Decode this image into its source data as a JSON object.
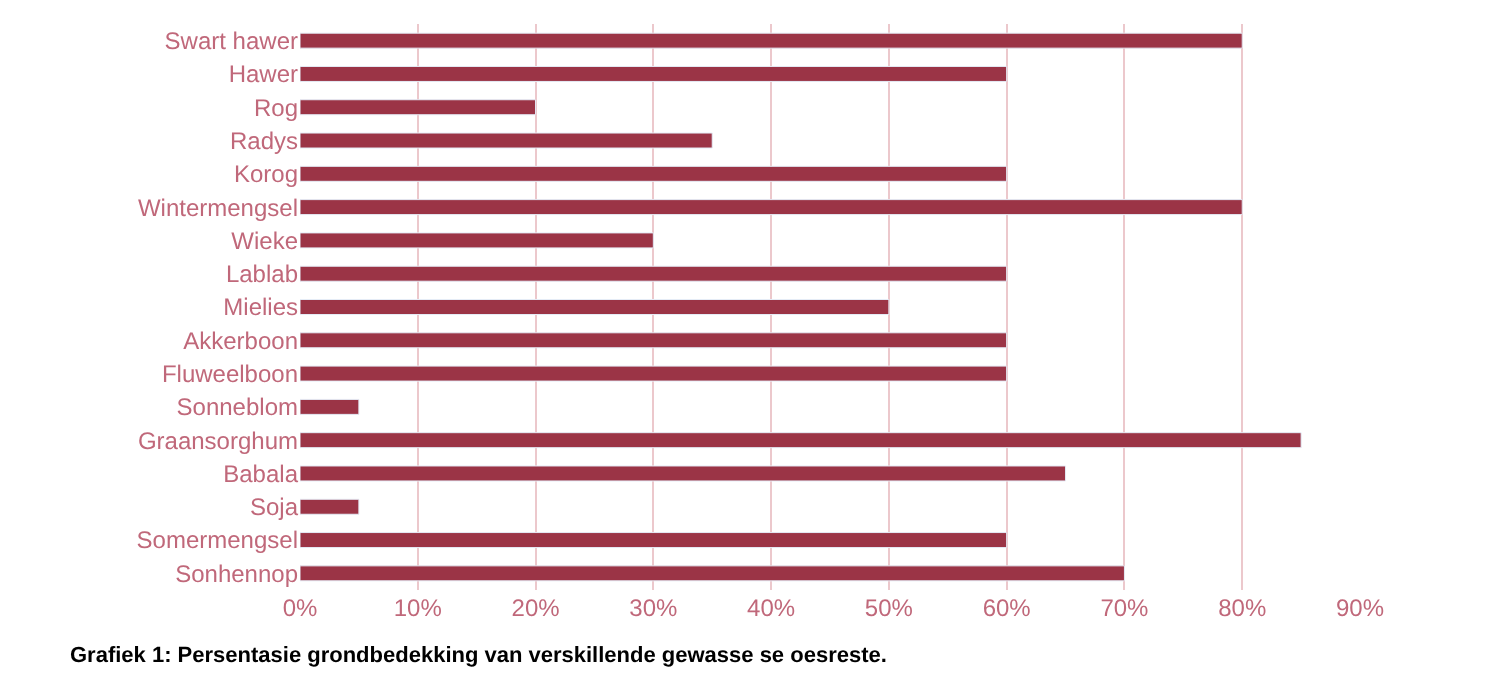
{
  "chart_data": {
    "type": "bar",
    "orientation": "horizontal",
    "categories": [
      "Swart hawer",
      "Hawer",
      "Rog",
      "Radys",
      "Korog",
      "Wintermengsel",
      "Wieke",
      "Lablab",
      "Mielies",
      "Akkerboon",
      "Fluweelboon",
      "Sonneblom",
      "Graansorghum",
      "Babala",
      "Soja",
      "Somermengsel",
      "Sonhennop"
    ],
    "values": [
      80,
      60,
      20,
      35,
      60,
      80,
      30,
      60,
      50,
      60,
      60,
      5,
      85,
      65,
      5,
      60,
      70
    ],
    "color": "#9b3446",
    "xlim": [
      0,
      90
    ],
    "xticks": [
      {
        "value": 0,
        "label": "0%"
      },
      {
        "value": 10,
        "label": "10%"
      },
      {
        "value": 20,
        "label": "20%"
      },
      {
        "value": 30,
        "label": "30%"
      },
      {
        "value": 40,
        "label": "40%"
      },
      {
        "value": 50,
        "label": "50%"
      },
      {
        "value": 60,
        "label": "60%"
      },
      {
        "value": 70,
        "label": "70%"
      },
      {
        "value": 80,
        "label": "80%"
      },
      {
        "value": 90,
        "label": "90%"
      }
    ],
    "grid": "x",
    "legend": false,
    "annotations": [
      "Grafiek 1: Persentasie grondbedekking van verskillende gewasse se oesreste."
    ]
  }
}
